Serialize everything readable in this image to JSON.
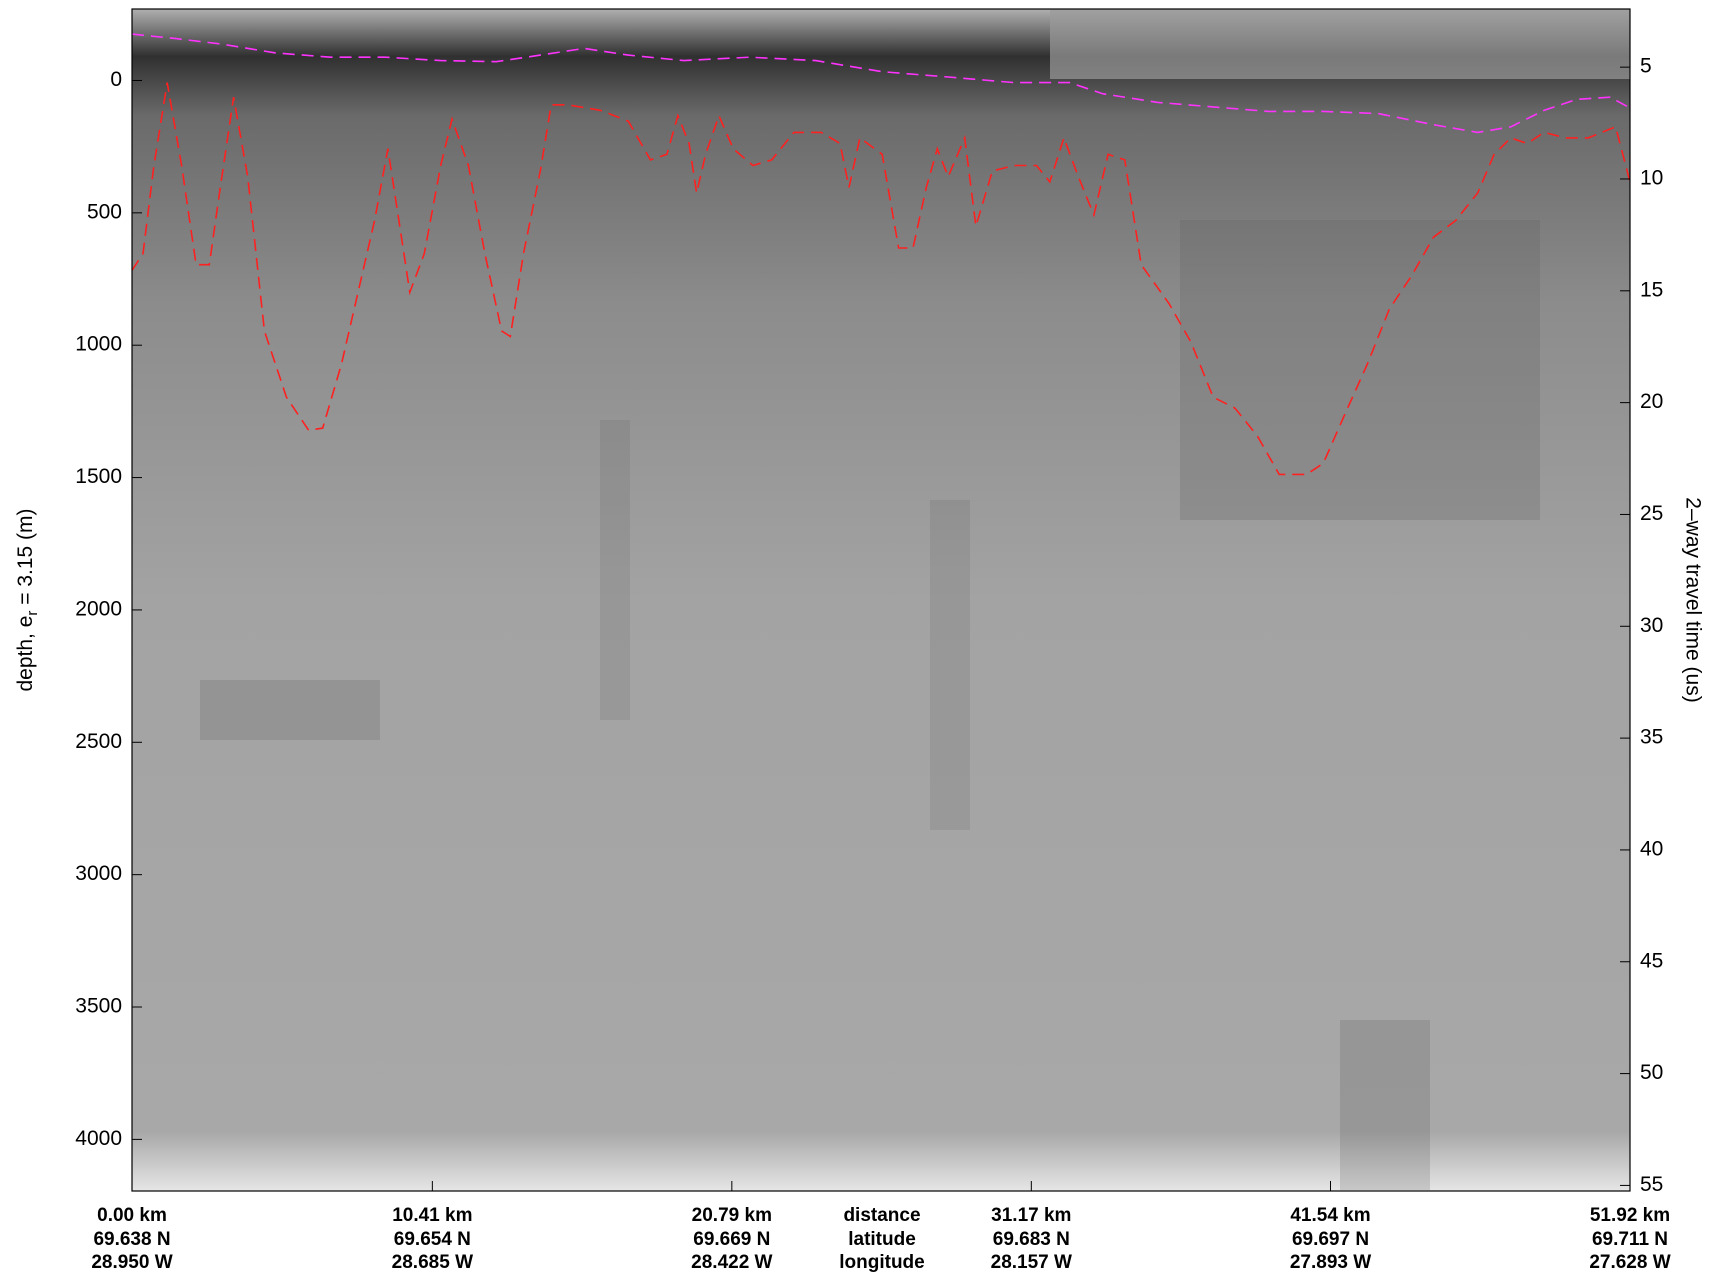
{
  "chart_data": {
    "type": "line",
    "y_label": [
      "depth, e",
      "r",
      " = 3.15 (m)"
    ],
    "y2_label": "2–way travel time (us)",
    "row_labels": [
      "distance",
      "latitude",
      "longitude"
    ],
    "xlim": [
      0,
      51.92
    ],
    "xticks": [
      {
        "value": 0,
        "label": "0.00 km"
      },
      {
        "value": 10.41,
        "label": "10.41 km"
      },
      {
        "value": 20.79,
        "label": "20.79 km"
      },
      {
        "value": 31.17,
        "label": "31.17 km"
      },
      {
        "value": 41.54,
        "label": "41.54 km"
      },
      {
        "value": 51.92,
        "label": "51.92 km"
      }
    ],
    "latitude_labels": [
      "69.638 N",
      "69.654 N",
      "69.669 N",
      "69.683 N",
      "69.697 N",
      "69.711 N"
    ],
    "longitude_labels": [
      "28.950 W",
      "28.685 W",
      "28.422 W",
      "28.157 W",
      "27.893 W",
      "27.628 W"
    ],
    "ylim": [
      -270,
      4195
    ],
    "y_inverted": true,
    "yticks": [
      0,
      500,
      1000,
      1500,
      2000,
      2500,
      3000,
      3500,
      4000
    ],
    "y2lim": [
      2.4,
      55.25
    ],
    "y2ticks": [
      5,
      10,
      15,
      20,
      25,
      30,
      35,
      40,
      45,
      50,
      55
    ],
    "series": [
      {
        "color": "#ff33ff",
        "dashed": true,
        "x": [
          0,
          1.53,
          3.06,
          4.97,
          6.88,
          8.79,
          10.7,
          12.62,
          14.15,
          15.67,
          17.2,
          19.12,
          21.41,
          23.7,
          26.0,
          28.29,
          30.58,
          32.5,
          33.64,
          35.55,
          37.47,
          39.38,
          41.29,
          43.2,
          45.11,
          46.64,
          47.79,
          48.94,
          50.08,
          51.23,
          51.92
        ],
        "values": [
          -175,
          -158,
          -138,
          -104,
          -88,
          -88,
          -75,
          -71,
          -96,
          -121,
          -96,
          -75,
          -88,
          -75,
          -33,
          -13,
          8,
          8,
          50,
          83,
          100,
          117,
          117,
          125,
          167,
          196,
          175,
          113,
          71,
          63,
          104
        ]
      },
      {
        "color": "#ff2020",
        "dashed": true,
        "x": [
          0,
          0.38,
          0.76,
          1.22,
          1.72,
          2.22,
          2.68,
          3.06,
          3.52,
          4.01,
          4.59,
          5.35,
          6.12,
          6.61,
          7.26,
          8.41,
          8.87,
          9.25,
          9.63,
          10.13,
          10.7,
          11.09,
          11.66,
          12.23,
          12.81,
          13.11,
          13.57,
          14.15,
          14.53,
          15.1,
          16.25,
          17.2,
          17.97,
          18.54,
          18.92,
          19.31,
          19.57,
          19.88,
          20.34,
          20.84,
          21.52,
          22.17,
          22.94,
          23.89,
          24.54,
          24.85,
          25.23,
          26.0,
          26.57,
          27.07,
          27.53,
          27.91,
          28.29,
          28.86,
          29.25,
          29.82,
          30.58,
          31.35,
          31.81,
          32.3,
          32.8,
          33.34,
          33.83,
          34.41,
          34.98,
          35.94,
          36.7,
          37.47,
          38.23,
          39.0,
          39.76,
          40.71,
          41.29,
          42.05,
          42.82,
          43.58,
          44.35,
          45.11,
          45.88,
          46.64,
          47.21,
          47.79,
          48.36,
          48.94,
          49.7,
          50.47,
          51.42,
          51.92
        ],
        "values": [
          717,
          654,
          321,
          8,
          321,
          696,
          696,
          404,
          63,
          363,
          946,
          1196,
          1321,
          1313,
          1071,
          529,
          258,
          529,
          800,
          654,
          321,
          146,
          321,
          654,
          946,
          967,
          654,
          342,
          92,
          92,
          113,
          154,
          300,
          279,
          133,
          238,
          425,
          279,
          133,
          258,
          321,
          300,
          196,
          196,
          238,
          404,
          217,
          279,
          633,
          633,
          404,
          258,
          363,
          217,
          550,
          342,
          321,
          321,
          383,
          217,
          363,
          508,
          279,
          300,
          696,
          842,
          988,
          1196,
          1238,
          1342,
          1488,
          1488,
          1446,
          1258,
          1071,
          863,
          738,
          592,
          529,
          425,
          279,
          217,
          238,
          196,
          217,
          217,
          175,
          383
        ]
      }
    ]
  }
}
